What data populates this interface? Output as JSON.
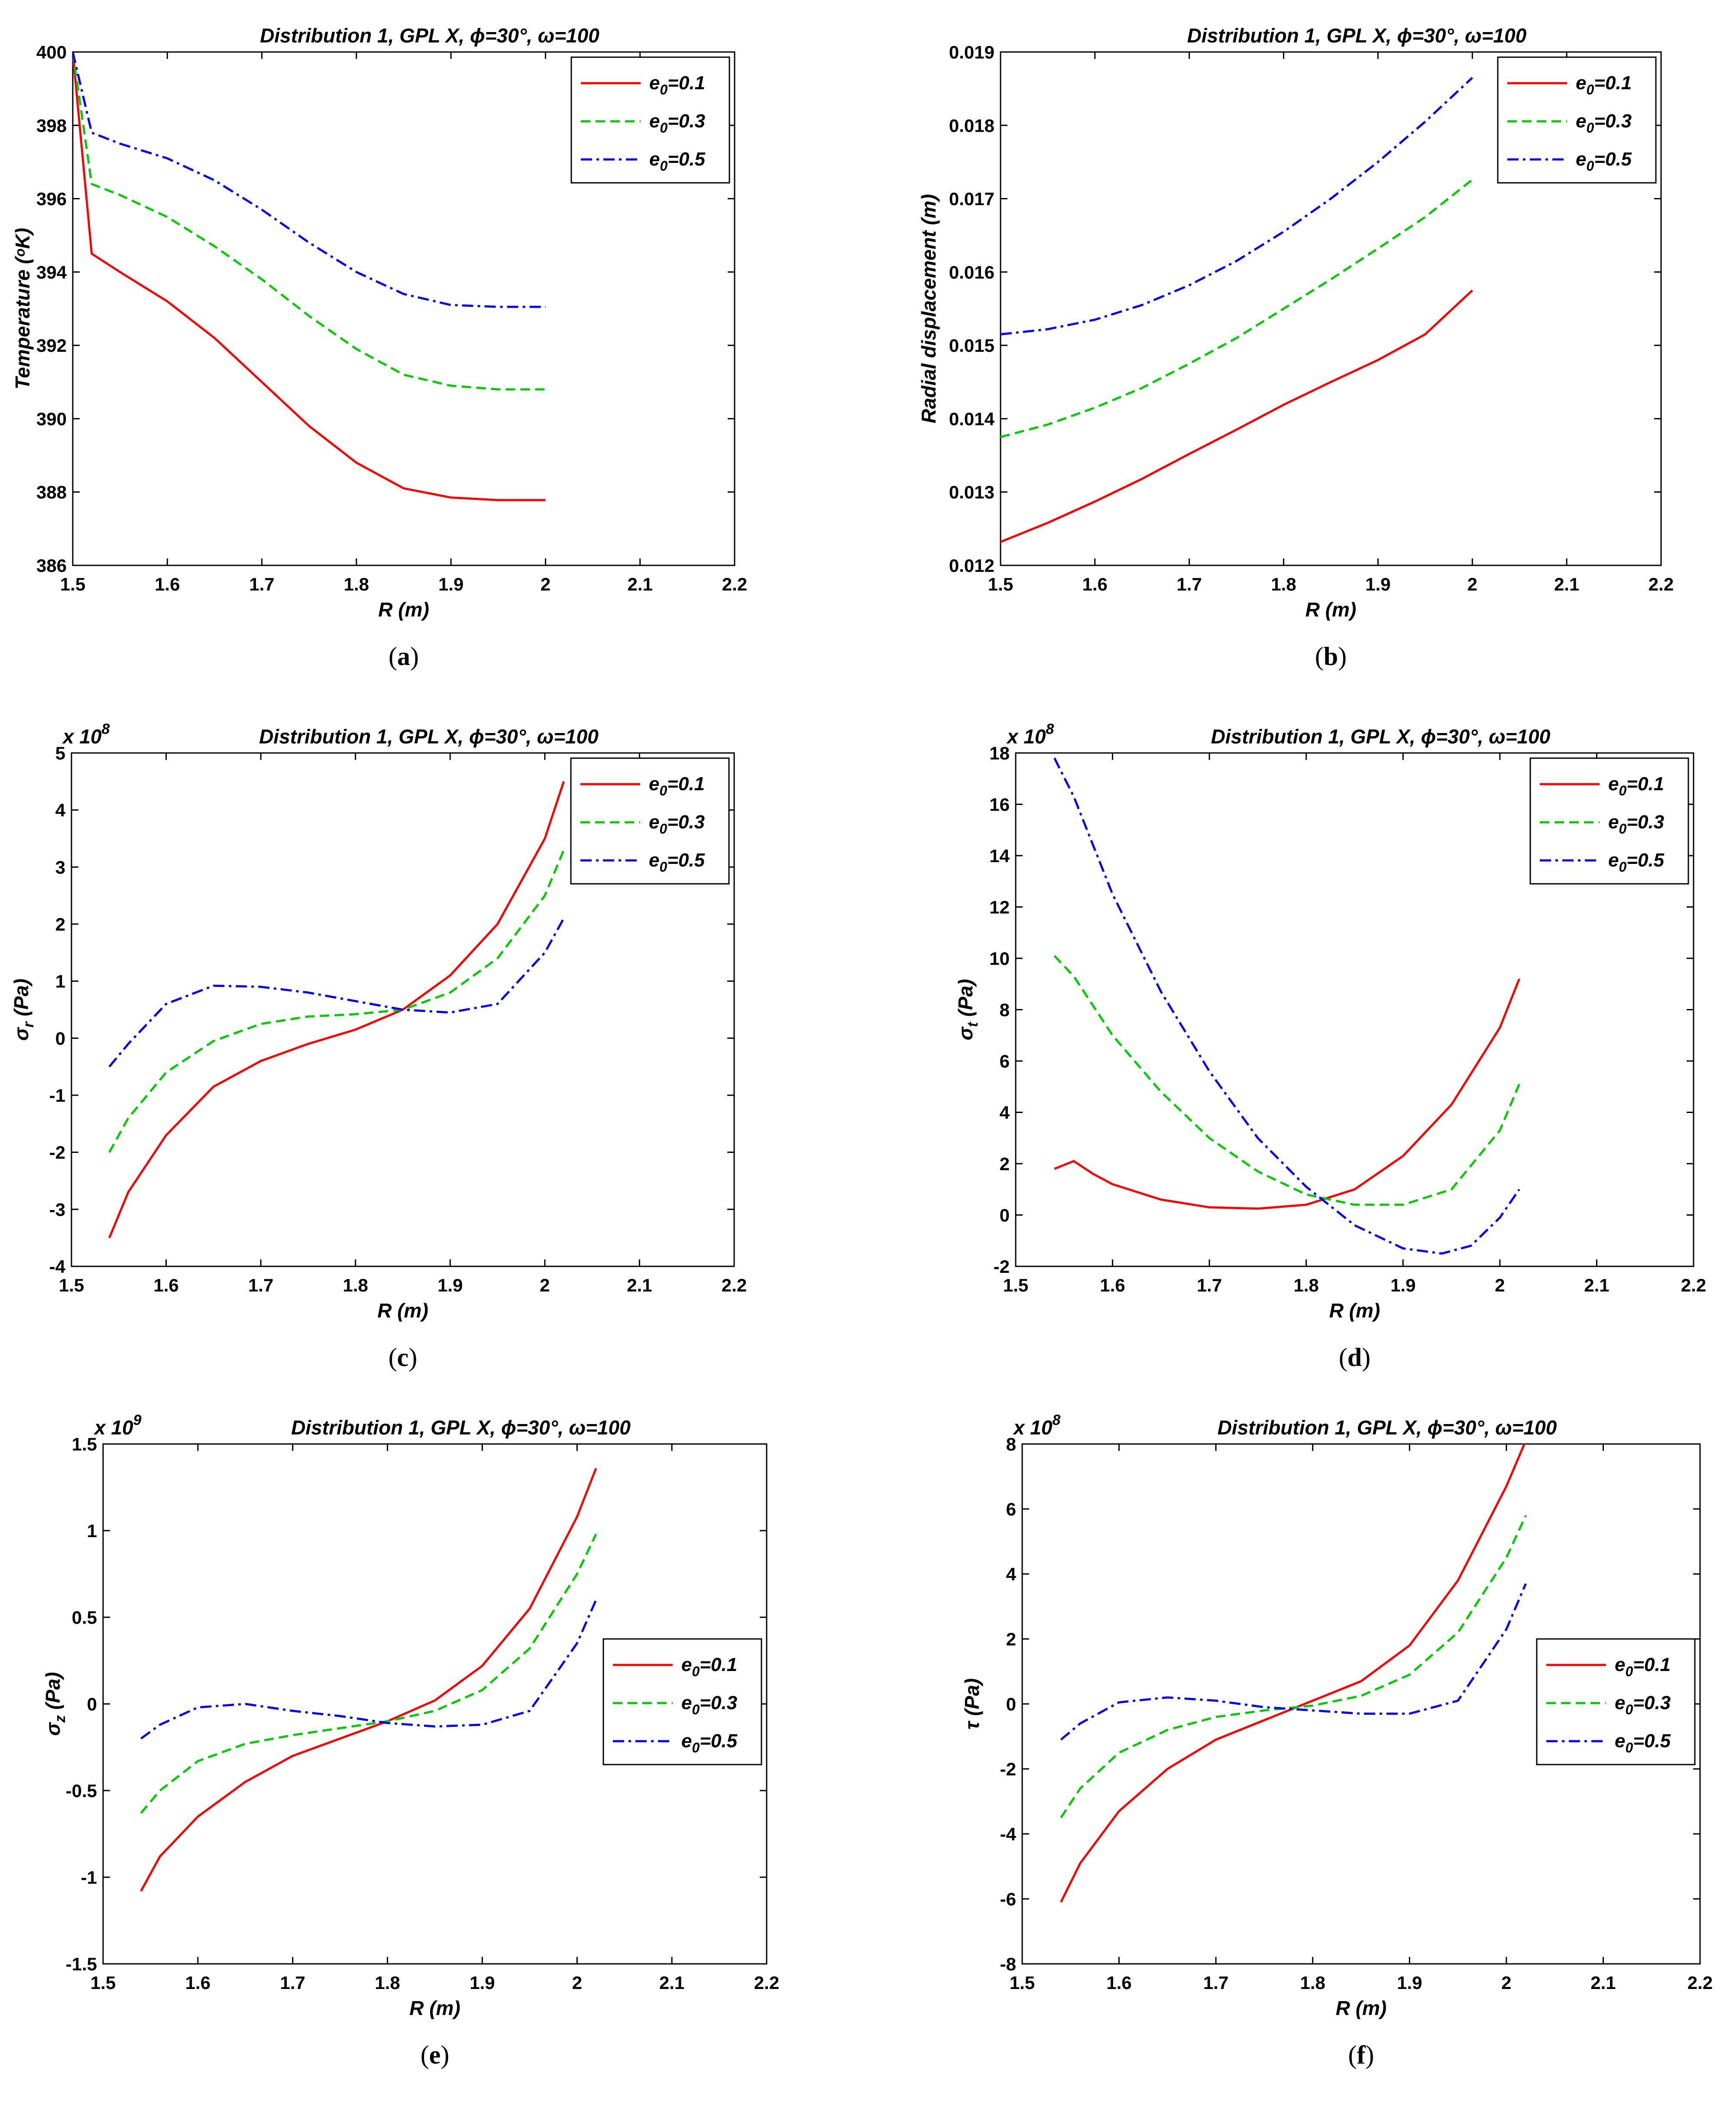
{
  "figure": {
    "panels": [
      "a",
      "b",
      "c",
      "d",
      "e",
      "f"
    ]
  },
  "chart_data": [
    {
      "id": "a",
      "panel_label": "a",
      "type": "line",
      "title": "Distribution 1, GPL X, ϕ=30°, ω=100",
      "xlabel": "R (m)",
      "ylabel": "Temperature (ᵒK)",
      "xlim": [
        1.5,
        2.2
      ],
      "ylim": [
        386,
        400
      ],
      "xticks": [
        1.5,
        1.6,
        1.7,
        1.8,
        1.9,
        2,
        2.1,
        2.2
      ],
      "xticklabels": [
        "1.5",
        "1.6",
        "1.7",
        "1.8",
        "1.9",
        "2",
        "2.1",
        "2.2"
      ],
      "yticks": [
        386,
        388,
        390,
        392,
        394,
        396,
        398,
        400
      ],
      "yticklabels": [
        "386",
        "388",
        "390",
        "392",
        "394",
        "396",
        "398",
        "400"
      ],
      "scale_label": "",
      "legend_position": "top-right",
      "series": [
        {
          "name": "e0=0.1",
          "label_main": "e",
          "label_sub": "0",
          "label_rest": "=0.1",
          "color": "#ff0000",
          "dash": "solid",
          "x": [
            1.5,
            1.52,
            1.55,
            1.6,
            1.65,
            1.7,
            1.75,
            1.8,
            1.85,
            1.9,
            1.95,
            2.0
          ],
          "y": [
            400,
            394.5,
            394.0,
            393.2,
            392.2,
            391.0,
            389.8,
            388.8,
            388.1,
            387.85,
            387.78,
            387.78
          ]
        },
        {
          "name": "e0=0.3",
          "label_main": "e",
          "label_sub": "0",
          "label_rest": "=0.3",
          "color": "#00cc00",
          "dash": "dashed",
          "x": [
            1.5,
            1.52,
            1.55,
            1.6,
            1.65,
            1.7,
            1.75,
            1.8,
            1.85,
            1.9,
            1.95,
            2.0
          ],
          "y": [
            400,
            396.4,
            396.1,
            395.5,
            394.7,
            393.8,
            392.8,
            391.9,
            391.2,
            390.9,
            390.8,
            390.8
          ]
        },
        {
          "name": "e0=0.5",
          "label_main": "e",
          "label_sub": "0",
          "label_rest": "=0.5",
          "color": "#0000ff",
          "dash": "dashdot",
          "x": [
            1.5,
            1.52,
            1.55,
            1.6,
            1.65,
            1.7,
            1.75,
            1.8,
            1.85,
            1.9,
            1.95,
            2.0
          ],
          "y": [
            400,
            397.8,
            397.5,
            397.1,
            396.5,
            395.7,
            394.8,
            394.0,
            393.4,
            393.1,
            393.05,
            393.05
          ]
        }
      ]
    },
    {
      "id": "b",
      "panel_label": "b",
      "type": "line",
      "title": "Distribution 1, GPL X, ϕ=30°, ω=100",
      "xlabel": "R (m)",
      "ylabel": "Radial displacement (m)",
      "xlim": [
        1.5,
        2.2
      ],
      "ylim": [
        0.012,
        0.019
      ],
      "xticks": [
        1.5,
        1.6,
        1.7,
        1.8,
        1.9,
        2,
        2.1,
        2.2
      ],
      "xticklabels": [
        "1.5",
        "1.6",
        "1.7",
        "1.8",
        "1.9",
        "2",
        "2.1",
        "2.2"
      ],
      "yticks": [
        0.012,
        0.013,
        0.014,
        0.015,
        0.016,
        0.017,
        0.018,
        0.019
      ],
      "yticklabels": [
        "0.012",
        "0.013",
        "0.014",
        "0.015",
        "0.016",
        "0.017",
        "0.018",
        "0.019"
      ],
      "scale_label": "",
      "legend_position": "top-right",
      "series": [
        {
          "name": "e0=0.1",
          "label_main": "e",
          "label_sub": "0",
          "label_rest": "=0.1",
          "color": "#ff0000",
          "dash": "solid",
          "x": [
            1.5,
            1.55,
            1.6,
            1.65,
            1.7,
            1.75,
            1.8,
            1.85,
            1.9,
            1.95,
            2.0
          ],
          "y": [
            0.01232,
            0.01258,
            0.01287,
            0.01318,
            0.01352,
            0.01385,
            0.01419,
            0.0145,
            0.0148,
            0.01515,
            0.01575
          ]
        },
        {
          "name": "e0=0.3",
          "label_main": "e",
          "label_sub": "0",
          "label_rest": "=0.3",
          "color": "#00cc00",
          "dash": "dashed",
          "x": [
            1.5,
            1.55,
            1.6,
            1.65,
            1.7,
            1.75,
            1.8,
            1.85,
            1.9,
            1.95,
            2.0
          ],
          "y": [
            0.01375,
            0.01392,
            0.01415,
            0.01442,
            0.01475,
            0.0151,
            0.0155,
            0.0159,
            0.01632,
            0.01675,
            0.01726
          ]
        },
        {
          "name": "e0=0.5",
          "label_main": "e",
          "label_sub": "0",
          "label_rest": "=0.5",
          "color": "#0000ff",
          "dash": "dashdot",
          "x": [
            1.5,
            1.55,
            1.6,
            1.65,
            1.7,
            1.75,
            1.8,
            1.85,
            1.9,
            1.95,
            2.0
          ],
          "y": [
            0.01515,
            0.01522,
            0.01535,
            0.01555,
            0.01582,
            0.01615,
            0.01655,
            0.017,
            0.0175,
            0.01805,
            0.01865
          ]
        }
      ]
    },
    {
      "id": "c",
      "panel_label": "c",
      "type": "line",
      "title": "Distribution 1, GPL X, ϕ=30°, ω=100",
      "xlabel": "R (m)",
      "ylabel": "σr (Pa)",
      "ylabel_main": "σ",
      "ylabel_sub": "r",
      "ylabel_rest": " (Pa)",
      "xlim": [
        1.5,
        2.2
      ],
      "ylim": [
        -4,
        5
      ],
      "xticks": [
        1.5,
        1.6,
        1.7,
        1.8,
        1.9,
        2,
        2.1,
        2.2
      ],
      "xticklabels": [
        "1.5",
        "1.6",
        "1.7",
        "1.8",
        "1.9",
        "2",
        "2.1",
        "2.2"
      ],
      "yticks": [
        -4,
        -3,
        -2,
        -1,
        0,
        1,
        2,
        3,
        4,
        5
      ],
      "yticklabels": [
        "-4",
        "-3",
        "-2",
        "-1",
        "0",
        "1",
        "2",
        "3",
        "4",
        "5"
      ],
      "scale_label": "x 10",
      "scale_exp": "8",
      "legend_position": "top-right",
      "series": [
        {
          "name": "e0=0.1",
          "label_main": "e",
          "label_sub": "0",
          "label_rest": "=0.1",
          "color": "#ff0000",
          "dash": "solid",
          "x": [
            1.54,
            1.56,
            1.6,
            1.65,
            1.7,
            1.75,
            1.8,
            1.85,
            1.9,
            1.95,
            2.0,
            2.02
          ],
          "y": [
            -3.5,
            -2.7,
            -1.7,
            -0.85,
            -0.4,
            -0.1,
            0.15,
            0.5,
            1.1,
            2.0,
            3.5,
            4.5
          ]
        },
        {
          "name": "e0=0.3",
          "label_main": "e",
          "label_sub": "0",
          "label_rest": "=0.3",
          "color": "#00cc00",
          "dash": "dashed",
          "x": [
            1.54,
            1.56,
            1.6,
            1.65,
            1.7,
            1.75,
            1.8,
            1.85,
            1.9,
            1.95,
            2.0,
            2.02
          ],
          "y": [
            -2.0,
            -1.4,
            -0.6,
            -0.05,
            0.25,
            0.38,
            0.42,
            0.5,
            0.8,
            1.4,
            2.5,
            3.3
          ]
        },
        {
          "name": "e0=0.5",
          "label_main": "e",
          "label_sub": "0",
          "label_rest": "=0.5",
          "color": "#0000ff",
          "dash": "dashdot",
          "x": [
            1.54,
            1.56,
            1.6,
            1.65,
            1.7,
            1.75,
            1.8,
            1.85,
            1.9,
            1.95,
            2.0,
            2.02
          ],
          "y": [
            -0.5,
            -0.1,
            0.6,
            0.92,
            0.9,
            0.8,
            0.65,
            0.5,
            0.45,
            0.6,
            1.5,
            2.1
          ]
        }
      ]
    },
    {
      "id": "d",
      "panel_label": "d",
      "type": "line",
      "title": "Distribution 1, GPL X, ϕ=30°, ω=100",
      "xlabel": "R (m)",
      "ylabel": "σt (Pa)",
      "ylabel_main": "σ",
      "ylabel_sub": "t",
      "ylabel_rest": " (Pa)",
      "xlim": [
        1.5,
        2.2
      ],
      "ylim": [
        -2,
        18
      ],
      "xticks": [
        1.5,
        1.6,
        1.7,
        1.8,
        1.9,
        2,
        2.1,
        2.2
      ],
      "xticklabels": [
        "1.5",
        "1.6",
        "1.7",
        "1.8",
        "1.9",
        "2",
        "2.1",
        "2.2"
      ],
      "yticks": [
        -2,
        0,
        2,
        4,
        6,
        8,
        10,
        12,
        14,
        16,
        18
      ],
      "yticklabels": [
        "-2",
        "0",
        "2",
        "4",
        "6",
        "8",
        "10",
        "12",
        "14",
        "16",
        "18"
      ],
      "scale_label": "x 10",
      "scale_exp": "8",
      "legend_position": "top-right",
      "series": [
        {
          "name": "e0=0.1",
          "label_main": "e",
          "label_sub": "0",
          "label_rest": "=0.1",
          "color": "#ff0000",
          "dash": "solid",
          "x": [
            1.54,
            1.56,
            1.58,
            1.6,
            1.65,
            1.7,
            1.75,
            1.8,
            1.85,
            1.9,
            1.95,
            2.0,
            2.02
          ],
          "y": [
            1.8,
            2.1,
            1.6,
            1.2,
            0.6,
            0.3,
            0.25,
            0.4,
            1.0,
            2.3,
            4.3,
            7.3,
            9.2
          ]
        },
        {
          "name": "e0=0.3",
          "label_main": "e",
          "label_sub": "0",
          "label_rest": "=0.3",
          "color": "#00cc00",
          "dash": "dashed",
          "x": [
            1.54,
            1.56,
            1.6,
            1.65,
            1.7,
            1.75,
            1.8,
            1.85,
            1.9,
            1.95,
            2.0,
            2.02
          ],
          "y": [
            10.1,
            9.3,
            7.0,
            4.8,
            3.0,
            1.7,
            0.8,
            0.4,
            0.4,
            1.0,
            3.3,
            5.1
          ]
        },
        {
          "name": "e0=0.5",
          "label_main": "e",
          "label_sub": "0",
          "label_rest": "=0.5",
          "color": "#0000ff",
          "dash": "dashdot",
          "x": [
            1.54,
            1.56,
            1.6,
            1.65,
            1.7,
            1.75,
            1.8,
            1.85,
            1.9,
            1.94,
            1.97,
            2.0,
            2.02
          ],
          "y": [
            17.8,
            16.3,
            12.5,
            8.7,
            5.6,
            3.0,
            1.1,
            -0.4,
            -1.3,
            -1.5,
            -1.2,
            -0.1,
            1.0
          ]
        }
      ]
    },
    {
      "id": "e",
      "panel_label": "e",
      "type": "line",
      "title": "Distribution 1, GPL X, ϕ=30°, ω=100",
      "xlabel": "R (m)",
      "ylabel": "σz (Pa)",
      "ylabel_main": "σ",
      "ylabel_sub": "z",
      "ylabel_rest": " (Pa)",
      "xlim": [
        1.5,
        2.2
      ],
      "ylim": [
        -1.5,
        1.5
      ],
      "xticks": [
        1.5,
        1.6,
        1.7,
        1.8,
        1.9,
        2,
        2.1,
        2.2
      ],
      "xticklabels": [
        "1.5",
        "1.6",
        "1.7",
        "1.8",
        "1.9",
        "2",
        "2.1",
        "2.2"
      ],
      "yticks": [
        -1.5,
        -1,
        -0.5,
        0,
        0.5,
        1,
        1.5
      ],
      "yticklabels": [
        "-1.5",
        "-1",
        "-0.5",
        "0",
        "0.5",
        "1",
        "1.5"
      ],
      "scale_label": "x 10",
      "scale_exp": "9",
      "legend_position": "center-right",
      "series": [
        {
          "name": "e0=0.1",
          "label_main": "e",
          "label_sub": "0",
          "label_rest": "=0.1",
          "color": "#ff0000",
          "dash": "solid",
          "x": [
            1.54,
            1.56,
            1.6,
            1.65,
            1.7,
            1.75,
            1.8,
            1.85,
            1.9,
            1.95,
            2.0,
            2.02
          ],
          "y": [
            -1.08,
            -0.88,
            -0.65,
            -0.45,
            -0.3,
            -0.2,
            -0.1,
            0.02,
            0.22,
            0.55,
            1.08,
            1.36
          ]
        },
        {
          "name": "e0=0.3",
          "label_main": "e",
          "label_sub": "0",
          "label_rest": "=0.3",
          "color": "#00cc00",
          "dash": "dashed",
          "x": [
            1.54,
            1.56,
            1.6,
            1.65,
            1.7,
            1.75,
            1.8,
            1.85,
            1.9,
            1.95,
            2.0,
            2.02
          ],
          "y": [
            -0.63,
            -0.5,
            -0.33,
            -0.23,
            -0.18,
            -0.14,
            -0.1,
            -0.04,
            0.08,
            0.32,
            0.75,
            0.98
          ]
        },
        {
          "name": "e0=0.5",
          "label_main": "e",
          "label_sub": "0",
          "label_rest": "=0.5",
          "color": "#0000ff",
          "dash": "dashdot",
          "x": [
            1.54,
            1.56,
            1.6,
            1.65,
            1.7,
            1.75,
            1.8,
            1.85,
            1.9,
            1.95,
            2.0,
            2.02
          ],
          "y": [
            -0.2,
            -0.12,
            -0.02,
            0.0,
            -0.04,
            -0.07,
            -0.11,
            -0.13,
            -0.12,
            -0.04,
            0.35,
            0.6
          ]
        }
      ]
    },
    {
      "id": "f",
      "panel_label": "f",
      "type": "line",
      "title": "Distribution 1, GPL X, ϕ=30°, ω=100",
      "xlabel": "R (m)",
      "ylabel": "τ (Pa)",
      "ylabel_main": "τ",
      "ylabel_sub": "",
      "ylabel_rest": " (Pa)",
      "xlim": [
        1.5,
        2.2
      ],
      "ylim": [
        -8,
        8
      ],
      "xticks": [
        1.5,
        1.6,
        1.7,
        1.8,
        1.9,
        2,
        2.1,
        2.2
      ],
      "xticklabels": [
        "1.5",
        "1.6",
        "1.7",
        "1.8",
        "1.9",
        "2",
        "2.1",
        "2.2"
      ],
      "yticks": [
        -8,
        -6,
        -4,
        -2,
        0,
        2,
        4,
        6,
        8
      ],
      "yticklabels": [
        "-8",
        "-6",
        "-4",
        "-2",
        "0",
        "2",
        "4",
        "6",
        "8"
      ],
      "scale_label": "x 10",
      "scale_exp": "8",
      "legend_position": "center-right",
      "series": [
        {
          "name": "e0=0.1",
          "label_main": "e",
          "label_sub": "0",
          "label_rest": "=0.1",
          "color": "#ff0000",
          "dash": "solid",
          "x": [
            1.54,
            1.56,
            1.6,
            1.65,
            1.7,
            1.75,
            1.8,
            1.85,
            1.9,
            1.95,
            2.0,
            2.02
          ],
          "y": [
            -6.1,
            -4.9,
            -3.3,
            -2.0,
            -1.1,
            -0.5,
            0.1,
            0.7,
            1.8,
            3.8,
            6.7,
            8.1
          ]
        },
        {
          "name": "e0=0.3",
          "label_main": "e",
          "label_sub": "0",
          "label_rest": "=0.3",
          "color": "#00cc00",
          "dash": "dashed",
          "x": [
            1.54,
            1.56,
            1.6,
            1.65,
            1.7,
            1.75,
            1.8,
            1.85,
            1.9,
            1.95,
            2.0,
            2.02
          ],
          "y": [
            -3.5,
            -2.6,
            -1.5,
            -0.8,
            -0.4,
            -0.2,
            -0.05,
            0.25,
            0.9,
            2.2,
            4.5,
            5.8
          ]
        },
        {
          "name": "e0=0.5",
          "label_main": "e",
          "label_sub": "0",
          "label_rest": "=0.5",
          "color": "#0000ff",
          "dash": "dashdot",
          "x": [
            1.54,
            1.56,
            1.6,
            1.65,
            1.7,
            1.75,
            1.8,
            1.85,
            1.9,
            1.95,
            2.0,
            2.02
          ],
          "y": [
            -1.1,
            -0.6,
            0.05,
            0.2,
            0.1,
            -0.1,
            -0.2,
            -0.3,
            -0.3,
            0.1,
            2.3,
            3.7
          ]
        }
      ]
    }
  ]
}
